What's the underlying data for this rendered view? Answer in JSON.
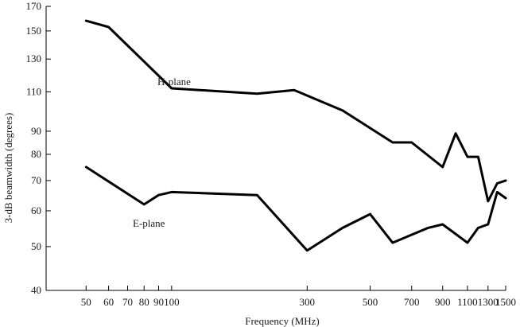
{
  "chart_data": {
    "type": "line",
    "xlabel": "Frequency (MHz)",
    "ylabel": "3-dB beamwidth (degrees)",
    "x_scale": "log",
    "y_scale": "log",
    "xlim": [
      50,
      1500
    ],
    "ylim": [
      40,
      170
    ],
    "x_ticks": [
      50,
      60,
      70,
      80,
      90,
      100,
      300,
      500,
      700,
      900,
      1100,
      1300,
      1500
    ],
    "y_ticks": [
      40,
      50,
      60,
      70,
      80,
      90,
      110,
      130,
      150,
      170
    ],
    "grid": false,
    "line_color": "#000000",
    "series": [
      {
        "name": "H-plane",
        "x": [
          50,
          60,
          100,
          200,
          270,
          400,
          600,
          700,
          900,
          1000,
          1100,
          1200,
          1300,
          1400,
          1500
        ],
        "y": [
          158,
          153,
          112,
          109,
          111,
          100,
          85,
          85,
          75,
          89,
          79,
          79,
          63,
          69,
          70
        ]
      },
      {
        "name": "E-plane",
        "x": [
          50,
          80,
          90,
          100,
          200,
          300,
          400,
          500,
          600,
          800,
          900,
          1100,
          1200,
          1300,
          1400,
          1500
        ],
        "y": [
          75,
          62,
          65,
          66,
          65,
          49,
          55,
          59,
          51,
          55,
          56,
          51,
          55,
          56,
          66,
          64
        ]
      }
    ]
  }
}
